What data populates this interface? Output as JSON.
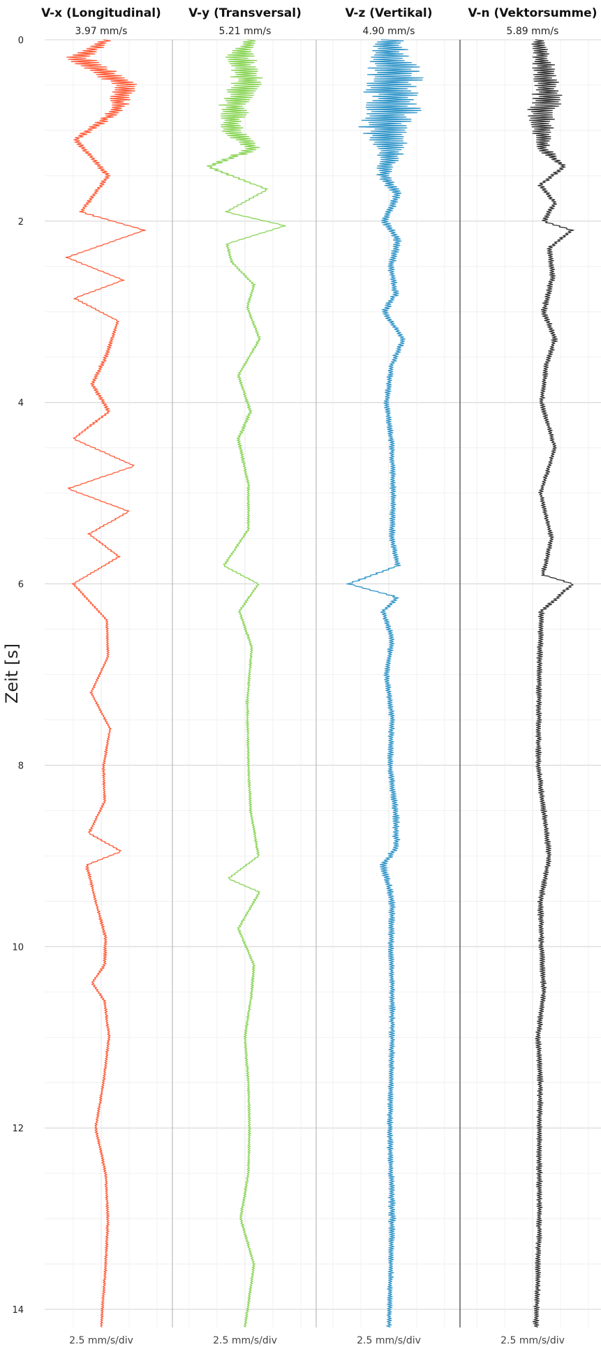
{
  "chart_data": {
    "type": "line",
    "layout_note": "four vertical seismograph traces sharing a time axis",
    "ylabel": "Zeit [s]",
    "time_axis": {
      "range": [
        0,
        14.2
      ],
      "ticks": [
        0,
        2,
        4,
        6,
        8,
        10,
        12,
        14
      ],
      "direction": "downward"
    },
    "grid": true,
    "series": [
      {
        "name": "V-x (Longitudinal)",
        "peak": "3.97 mm/s",
        "scale": "2.5 mm/s/div",
        "color": "#FF5A36",
        "t": [
          0.0,
          0.2,
          0.5,
          0.8,
          1.1,
          1.5,
          1.9,
          2.1,
          2.4,
          2.65,
          2.85,
          3.1,
          3.5,
          3.8,
          4.1,
          4.4,
          4.7,
          4.95,
          5.2,
          5.45,
          5.7,
          6.0,
          6.4,
          6.8,
          7.2,
          7.6,
          8.0,
          8.4,
          8.75,
          8.95,
          9.1,
          9.5,
          9.9,
          10.2,
          10.4,
          10.6,
          11.0,
          11.5,
          12.0,
          12.5,
          13.0,
          13.5,
          14.2
        ],
        "v": [
          0.5,
          -2.1,
          2.2,
          1.2,
          -2.3,
          0.6,
          -1.8,
          3.9,
          -3.1,
          2.0,
          -2.4,
          1.5,
          0.4,
          -0.8,
          0.7,
          -2.5,
          3.0,
          -3.0,
          2.5,
          -1.1,
          1.6,
          -2.5,
          0.5,
          0.6,
          -0.9,
          0.8,
          0.2,
          0.3,
          -1.1,
          1.8,
          -1.3,
          -0.5,
          0.4,
          0.3,
          -0.8,
          0.3,
          0.7,
          0.2,
          -0.5,
          0.4,
          0.6,
          0.4,
          0.0
        ],
        "jitter": [
          0.5,
          1.2,
          1.3,
          0.7,
          0.3,
          0.25,
          0.2,
          0.12,
          0.12,
          0.12,
          0.12,
          0.12,
          0.2,
          0.2,
          0.2,
          0.12,
          0.12,
          0.12,
          0.12,
          0.12,
          0.12,
          0.12,
          0.12,
          0.1,
          0.1,
          0.1,
          0.12,
          0.12,
          0.12,
          0.12,
          0.15,
          0.12,
          0.15,
          0.15,
          0.12,
          0.12,
          0.12,
          0.12,
          0.12,
          0.12,
          0.12,
          0.12,
          0.12
        ]
      },
      {
        "name": "V-y (Transversal)",
        "peak": "5.21 mm/s",
        "scale": "2.5 mm/s/div",
        "color": "#88D454",
        "t": [
          0.0,
          0.2,
          0.45,
          0.7,
          1.0,
          1.2,
          1.4,
          1.65,
          1.9,
          2.05,
          2.25,
          2.45,
          2.7,
          2.95,
          3.3,
          3.7,
          4.1,
          4.4,
          4.9,
          5.4,
          5.8,
          6.0,
          6.3,
          6.7,
          7.3,
          8.0,
          8.5,
          9.0,
          9.25,
          9.4,
          9.8,
          10.2,
          10.5,
          11.0,
          11.5,
          12.0,
          12.5,
          13.0,
          13.5,
          14.2
        ],
        "v": [
          0.5,
          -0.5,
          0.3,
          -0.8,
          -1.3,
          0.8,
          -3.3,
          2.0,
          -1.7,
          3.6,
          -1.6,
          -1.2,
          0.8,
          0.2,
          1.3,
          -0.6,
          0.5,
          -0.6,
          0.3,
          0.3,
          -1.9,
          1.2,
          -0.5,
          0.6,
          0.2,
          0.3,
          0.5,
          1.2,
          -1.5,
          1.3,
          -0.6,
          0.8,
          0.6,
          0.0,
          0.3,
          0.4,
          0.3,
          -0.4,
          0.8,
          0.0
        ],
        "jitter": [
          0.6,
          1.4,
          1.4,
          1.4,
          1.0,
          0.8,
          0.3,
          0.15,
          0.12,
          0.12,
          0.12,
          0.12,
          0.12,
          0.12,
          0.12,
          0.12,
          0.15,
          0.15,
          0.12,
          0.12,
          0.12,
          0.12,
          0.12,
          0.12,
          0.12,
          0.12,
          0.12,
          0.12,
          0.12,
          0.12,
          0.12,
          0.12,
          0.12,
          0.12,
          0.12,
          0.12,
          0.12,
          0.12,
          0.12,
          0.12
        ]
      },
      {
        "name": "V-z (Vertikal)",
        "peak": "4.90 mm/s",
        "scale": "2.5 mm/s/div",
        "color": "#2E94C8",
        "t": [
          0.0,
          0.3,
          0.6,
          0.9,
          1.2,
          1.5,
          1.7,
          2.0,
          2.2,
          2.5,
          2.8,
          3.0,
          3.3,
          3.6,
          4.0,
          4.5,
          5.0,
          5.5,
          5.8,
          6.0,
          6.15,
          6.3,
          6.6,
          7.0,
          7.5,
          8.0,
          8.5,
          8.9,
          9.1,
          9.5,
          10.0,
          10.5,
          11.0,
          11.5,
          12.0,
          12.5,
          13.0,
          13.5,
          14.2
        ],
        "v": [
          0.0,
          0.3,
          0.5,
          -0.3,
          0.2,
          -0.5,
          0.8,
          -0.4,
          0.8,
          0.2,
          0.6,
          -0.4,
          1.3,
          0.2,
          -0.2,
          0.3,
          0.4,
          0.3,
          0.8,
          -3.6,
          0.8,
          -0.5,
          0.3,
          -0.2,
          0.3,
          0.1,
          0.6,
          0.7,
          -0.5,
          0.3,
          0.2,
          0.3,
          0.3,
          0.2,
          0.1,
          0.2,
          0.3,
          0.2,
          0.0
        ],
        "jitter": [
          1.4,
          2.2,
          2.6,
          2.6,
          1.3,
          0.6,
          0.4,
          0.35,
          0.35,
          0.3,
          0.3,
          0.3,
          0.25,
          0.25,
          0.25,
          0.25,
          0.25,
          0.25,
          0.25,
          0.2,
          0.25,
          0.25,
          0.25,
          0.25,
          0.25,
          0.25,
          0.3,
          0.3,
          0.3,
          0.3,
          0.25,
          0.25,
          0.25,
          0.25,
          0.25,
          0.25,
          0.3,
          0.25,
          0.2
        ]
      },
      {
        "name": "V-n (Vektorsumme)",
        "peak": "5.89 mm/s",
        "scale": "2.5 mm/s/div",
        "color": "#333333",
        "t": [
          0.0,
          0.3,
          0.6,
          0.9,
          1.2,
          1.4,
          1.6,
          1.8,
          2.0,
          2.1,
          2.3,
          2.6,
          3.0,
          3.3,
          3.6,
          4.0,
          4.5,
          5.0,
          5.5,
          5.9,
          6.0,
          6.3,
          7.0,
          8.0,
          9.0,
          9.5,
          10.0,
          10.5,
          11.0,
          11.5,
          12.0,
          12.5,
          13.0,
          13.5,
          14.2
        ],
        "v": [
          0.5,
          1.0,
          1.2,
          0.8,
          0.9,
          2.8,
          0.7,
          2.0,
          1.0,
          3.5,
          1.5,
          1.8,
          1.0,
          2.0,
          1.2,
          0.8,
          2.0,
          0.7,
          1.7,
          0.9,
          3.6,
          0.8,
          0.6,
          0.5,
          1.5,
          0.7,
          0.8,
          1.0,
          0.5,
          0.7,
          0.6,
          0.6,
          0.6,
          0.5,
          0.3
        ],
        "jitter": [
          0.6,
          1.0,
          1.4,
          1.2,
          0.6,
          0.25,
          0.25,
          0.25,
          0.25,
          0.2,
          0.25,
          0.25,
          0.25,
          0.25,
          0.25,
          0.25,
          0.2,
          0.2,
          0.2,
          0.2,
          0.2,
          0.25,
          0.25,
          0.25,
          0.25,
          0.25,
          0.25,
          0.25,
          0.25,
          0.25,
          0.25,
          0.25,
          0.25,
          0.25,
          0.25
        ]
      }
    ]
  }
}
